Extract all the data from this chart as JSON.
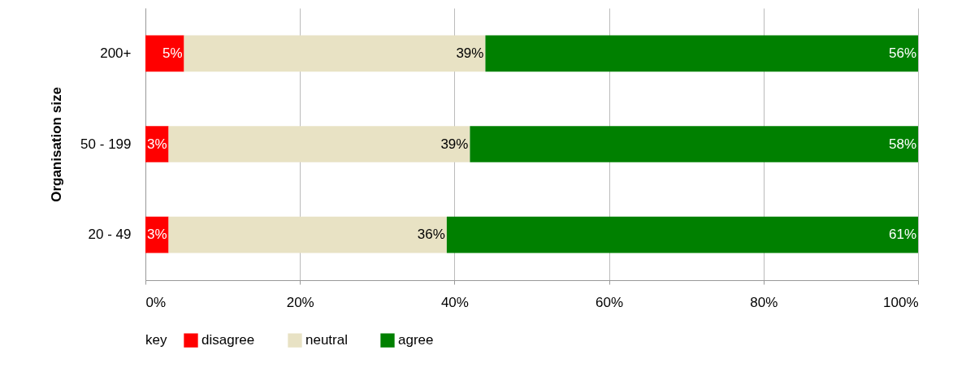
{
  "chart_data": {
    "type": "bar",
    "orientation": "horizontal",
    "stacked": true,
    "ylabel": "Organisation size",
    "legend_title": "key",
    "legend": "bottom",
    "categories": [
      "200+",
      "50 - 199",
      "20 - 49"
    ],
    "series": [
      {
        "name": "disagree",
        "color": "#ff0000",
        "values": [
          5,
          3,
          3
        ],
        "value_labels": [
          "5%",
          "3%",
          "3%"
        ]
      },
      {
        "name": "neutral",
        "color": "#e8e2c4",
        "values": [
          39,
          39,
          36
        ],
        "value_labels": [
          "39%",
          "39%",
          "36%"
        ]
      },
      {
        "name": "agree",
        "color": "#008000",
        "values": [
          56,
          58,
          61
        ],
        "value_labels": [
          "56%",
          "58%",
          "61%"
        ]
      }
    ],
    "xlim": [
      0,
      100
    ],
    "xticks": [
      {
        "value": 0,
        "label": "0%"
      },
      {
        "value": 20,
        "label": "20%"
      },
      {
        "value": 40,
        "label": "40%"
      },
      {
        "value": 60,
        "label": "60%"
      },
      {
        "value": 80,
        "label": "80%"
      },
      {
        "value": 100,
        "label": "100%"
      }
    ],
    "grid": "x"
  }
}
